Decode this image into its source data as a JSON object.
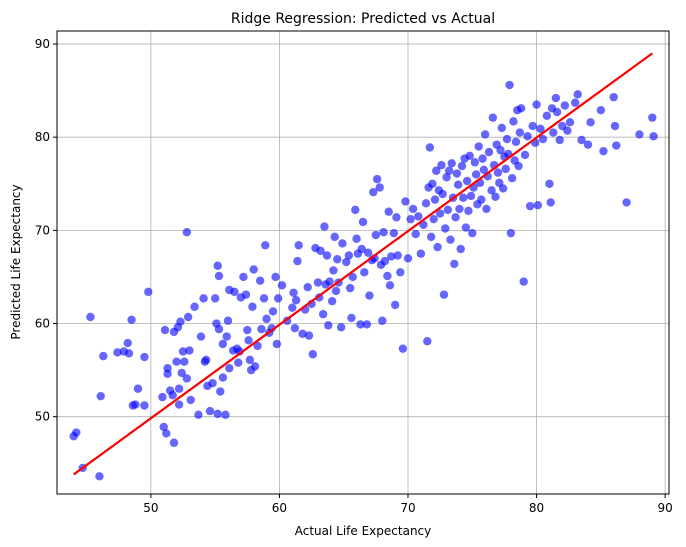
{
  "chart_data": {
    "type": "scatter",
    "title": "Ridge Regression: Predicted vs Actual",
    "xlabel": "Actual Life Expectancy",
    "ylabel": "Predicted Life Expectancy",
    "xlim": [
      42.7,
      90.3
    ],
    "ylim": [
      41.7,
      91.4
    ],
    "xticks": [
      50,
      60,
      70,
      80,
      90
    ],
    "yticks": [
      50,
      60,
      70,
      80,
      90
    ],
    "grid": true,
    "colors": {
      "points": "#0000ff",
      "line": "#ff0000",
      "grid": "#b0b0b0"
    },
    "reference_line": {
      "x": [
        44.0,
        89.0
      ],
      "y": [
        43.8,
        89.0
      ]
    },
    "points": [
      [
        44.0,
        47.9
      ],
      [
        44.2,
        48.3
      ],
      [
        44.7,
        44.5
      ],
      [
        45.3,
        60.7
      ],
      [
        46.0,
        43.6
      ],
      [
        46.1,
        52.2
      ],
      [
        46.3,
        56.5
      ],
      [
        47.4,
        56.9
      ],
      [
        47.9,
        57.0
      ],
      [
        48.2,
        57.9
      ],
      [
        48.3,
        56.8
      ],
      [
        48.5,
        60.4
      ],
      [
        48.6,
        51.2
      ],
      [
        48.8,
        51.3
      ],
      [
        49.0,
        53.0
      ],
      [
        49.5,
        51.2
      ],
      [
        49.5,
        56.4
      ],
      [
        49.8,
        63.4
      ],
      [
        50.9,
        52.1
      ],
      [
        51.0,
        48.9
      ],
      [
        51.1,
        59.3
      ],
      [
        51.2,
        48.2
      ],
      [
        51.3,
        54.6
      ],
      [
        51.3,
        55.2
      ],
      [
        51.5,
        52.8
      ],
      [
        51.7,
        52.3
      ],
      [
        51.8,
        47.2
      ],
      [
        51.8,
        59.1
      ],
      [
        52.0,
        55.9
      ],
      [
        52.1,
        59.6
      ],
      [
        52.2,
        53.0
      ],
      [
        52.2,
        51.3
      ],
      [
        52.3,
        60.2
      ],
      [
        52.4,
        54.7
      ],
      [
        52.5,
        57.0
      ],
      [
        52.6,
        55.9
      ],
      [
        52.8,
        69.8
      ],
      [
        52.8,
        54.1
      ],
      [
        52.9,
        60.7
      ],
      [
        53.0,
        57.1
      ],
      [
        53.1,
        51.8
      ],
      [
        53.4,
        61.8
      ],
      [
        53.7,
        50.2
      ],
      [
        53.9,
        58.6
      ],
      [
        54.1,
        62.7
      ],
      [
        54.2,
        55.9
      ],
      [
        54.3,
        56.1
      ],
      [
        54.4,
        53.3
      ],
      [
        54.6,
        50.6
      ],
      [
        54.8,
        53.6
      ],
      [
        55.0,
        62.7
      ],
      [
        55.1,
        60.0
      ],
      [
        55.2,
        50.3
      ],
      [
        55.2,
        66.2
      ],
      [
        55.3,
        65.1
      ],
      [
        55.3,
        59.4
      ],
      [
        55.4,
        52.7
      ],
      [
        55.6,
        54.2
      ],
      [
        55.6,
        57.8
      ],
      [
        55.8,
        50.2
      ],
      [
        55.9,
        58.6
      ],
      [
        56.0,
        60.3
      ],
      [
        56.1,
        63.6
      ],
      [
        56.1,
        55.2
      ],
      [
        56.4,
        57.1
      ],
      [
        56.5,
        63.4
      ],
      [
        56.7,
        57.3
      ],
      [
        56.8,
        55.8
      ],
      [
        56.9,
        57.0
      ],
      [
        57.0,
        62.8
      ],
      [
        57.2,
        65.0
      ],
      [
        57.4,
        63.1
      ],
      [
        57.5,
        59.3
      ],
      [
        57.6,
        58.2
      ],
      [
        57.7,
        56.1
      ],
      [
        57.8,
        55.0
      ],
      [
        57.9,
        61.8
      ],
      [
        58.0,
        65.8
      ],
      [
        58.1,
        55.4
      ],
      [
        58.3,
        57.6
      ],
      [
        58.5,
        64.6
      ],
      [
        58.6,
        59.4
      ],
      [
        58.8,
        62.7
      ],
      [
        58.9,
        68.4
      ],
      [
        59.0,
        60.5
      ],
      [
        59.2,
        59.0
      ],
      [
        59.4,
        59.5
      ],
      [
        59.5,
        61.3
      ],
      [
        59.7,
        65.0
      ],
      [
        59.8,
        57.8
      ],
      [
        59.9,
        62.7
      ],
      [
        60.2,
        64.1
      ],
      [
        60.6,
        60.3
      ],
      [
        61.0,
        61.7
      ],
      [
        61.1,
        63.3
      ],
      [
        61.2,
        59.5
      ],
      [
        61.3,
        62.5
      ],
      [
        61.4,
        66.7
      ],
      [
        61.5,
        68.4
      ],
      [
        61.8,
        58.9
      ],
      [
        62.0,
        61.5
      ],
      [
        62.2,
        63.9
      ],
      [
        62.3,
        58.7
      ],
      [
        62.5,
        62.1
      ],
      [
        62.6,
        56.7
      ],
      [
        62.8,
        68.1
      ],
      [
        63.0,
        64.4
      ],
      [
        63.1,
        62.8
      ],
      [
        63.2,
        67.8
      ],
      [
        63.4,
        61.0
      ],
      [
        63.5,
        70.4
      ],
      [
        63.6,
        64.2
      ],
      [
        63.7,
        67.3
      ],
      [
        63.8,
        59.8
      ],
      [
        63.9,
        64.5
      ],
      [
        64.1,
        62.4
      ],
      [
        64.2,
        65.7
      ],
      [
        64.3,
        69.3
      ],
      [
        64.4,
        63.5
      ],
      [
        64.5,
        66.9
      ],
      [
        64.6,
        64.4
      ],
      [
        64.8,
        59.6
      ],
      [
        64.9,
        68.6
      ],
      [
        65.2,
        66.6
      ],
      [
        65.4,
        67.3
      ],
      [
        65.5,
        63.8
      ],
      [
        65.6,
        60.6
      ],
      [
        65.7,
        65.0
      ],
      [
        65.9,
        72.2
      ],
      [
        66.0,
        69.1
      ],
      [
        66.1,
        67.5
      ],
      [
        66.3,
        59.9
      ],
      [
        66.4,
        68.0
      ],
      [
        66.5,
        70.9
      ],
      [
        66.6,
        65.5
      ],
      [
        66.8,
        59.9
      ],
      [
        66.9,
        67.6
      ],
      [
        67.0,
        63.0
      ],
      [
        67.2,
        66.8
      ],
      [
        67.3,
        74.1
      ],
      [
        67.4,
        67.0
      ],
      [
        67.5,
        69.5
      ],
      [
        67.6,
        75.5
      ],
      [
        67.8,
        74.6
      ],
      [
        67.9,
        66.3
      ],
      [
        68.0,
        60.3
      ],
      [
        68.1,
        69.8
      ],
      [
        68.2,
        66.7
      ],
      [
        68.4,
        65.1
      ],
      [
        68.5,
        72.0
      ],
      [
        68.6,
        64.1
      ],
      [
        68.7,
        67.2
      ],
      [
        68.9,
        69.7
      ],
      [
        69.0,
        62.0
      ],
      [
        69.1,
        71.4
      ],
      [
        69.2,
        67.3
      ],
      [
        69.4,
        65.5
      ],
      [
        69.6,
        57.3
      ],
      [
        69.8,
        73.1
      ],
      [
        70.0,
        67.0
      ],
      [
        70.2,
        71.2
      ],
      [
        70.4,
        72.3
      ],
      [
        70.6,
        69.6
      ],
      [
        70.8,
        71.5
      ],
      [
        71.0,
        67.5
      ],
      [
        71.2,
        70.6
      ],
      [
        71.4,
        72.9
      ],
      [
        71.5,
        58.1
      ],
      [
        71.6,
        74.6
      ],
      [
        71.7,
        78.9
      ],
      [
        71.8,
        69.3
      ],
      [
        71.9,
        75.0
      ],
      [
        72.0,
        71.2
      ],
      [
        72.1,
        73.3
      ],
      [
        72.2,
        76.4
      ],
      [
        72.3,
        68.2
      ],
      [
        72.4,
        74.3
      ],
      [
        72.5,
        71.8
      ],
      [
        72.6,
        77.0
      ],
      [
        72.7,
        73.9
      ],
      [
        72.8,
        63.1
      ],
      [
        72.9,
        70.2
      ],
      [
        73.0,
        75.7
      ],
      [
        73.1,
        72.2
      ],
      [
        73.2,
        76.4
      ],
      [
        73.3,
        69.0
      ],
      [
        73.4,
        77.2
      ],
      [
        73.5,
        73.5
      ],
      [
        73.6,
        66.4
      ],
      [
        73.7,
        71.4
      ],
      [
        73.8,
        76.1
      ],
      [
        73.9,
        74.9
      ],
      [
        74.0,
        72.3
      ],
      [
        74.1,
        68.0
      ],
      [
        74.2,
        76.9
      ],
      [
        74.3,
        73.5
      ],
      [
        74.4,
        77.7
      ],
      [
        74.5,
        70.3
      ],
      [
        74.6,
        75.3
      ],
      [
        74.7,
        72.1
      ],
      [
        74.8,
        78.0
      ],
      [
        74.9,
        73.7
      ],
      [
        75.0,
        69.7
      ],
      [
        75.1,
        74.6
      ],
      [
        75.2,
        77.3
      ],
      [
        75.3,
        76.0
      ],
      [
        75.4,
        72.8
      ],
      [
        75.5,
        79.0
      ],
      [
        75.6,
        75.1
      ],
      [
        75.7,
        73.3
      ],
      [
        75.8,
        77.7
      ],
      [
        75.9,
        76.5
      ],
      [
        76.0,
        80.3
      ],
      [
        76.1,
        72.3
      ],
      [
        76.2,
        75.8
      ],
      [
        76.3,
        78.4
      ],
      [
        76.5,
        74.3
      ],
      [
        76.6,
        82.1
      ],
      [
        76.7,
        77.0
      ],
      [
        76.8,
        73.6
      ],
      [
        76.9,
        79.2
      ],
      [
        77.0,
        76.2
      ],
      [
        77.1,
        75.1
      ],
      [
        77.2,
        78.6
      ],
      [
        77.3,
        81.0
      ],
      [
        77.4,
        74.5
      ],
      [
        77.5,
        77.9
      ],
      [
        77.6,
        76.6
      ],
      [
        77.7,
        79.8
      ],
      [
        77.8,
        78.2
      ],
      [
        77.9,
        85.6
      ],
      [
        78.0,
        69.7
      ],
      [
        78.1,
        75.6
      ],
      [
        78.2,
        81.7
      ],
      [
        78.3,
        77.5
      ],
      [
        78.4,
        79.5
      ],
      [
        78.5,
        82.9
      ],
      [
        78.6,
        76.9
      ],
      [
        78.7,
        80.5
      ],
      [
        78.8,
        83.1
      ],
      [
        79.0,
        64.5
      ],
      [
        79.1,
        78.1
      ],
      [
        79.3,
        80.1
      ],
      [
        79.5,
        72.6
      ],
      [
        79.7,
        81.2
      ],
      [
        79.9,
        79.4
      ],
      [
        80.0,
        83.5
      ],
      [
        80.1,
        72.7
      ],
      [
        80.3,
        80.9
      ],
      [
        80.5,
        79.8
      ],
      [
        80.8,
        82.3
      ],
      [
        81.0,
        75.0
      ],
      [
        81.1,
        73.0
      ],
      [
        81.2,
        83.1
      ],
      [
        81.3,
        80.5
      ],
      [
        81.5,
        84.2
      ],
      [
        81.6,
        82.7
      ],
      [
        81.8,
        79.7
      ],
      [
        82.0,
        81.2
      ],
      [
        82.2,
        83.4
      ],
      [
        82.4,
        80.7
      ],
      [
        82.6,
        81.6
      ],
      [
        83.0,
        83.7
      ],
      [
        83.2,
        84.6
      ],
      [
        83.5,
        79.7
      ],
      [
        84.0,
        79.2
      ],
      [
        84.2,
        81.6
      ],
      [
        85.0,
        82.9
      ],
      [
        85.2,
        78.5
      ],
      [
        86.0,
        84.3
      ],
      [
        86.1,
        81.2
      ],
      [
        86.2,
        79.1
      ],
      [
        87.0,
        73.0
      ],
      [
        88.0,
        80.3
      ],
      [
        89.0,
        82.1
      ],
      [
        89.1,
        80.1
      ]
    ]
  }
}
